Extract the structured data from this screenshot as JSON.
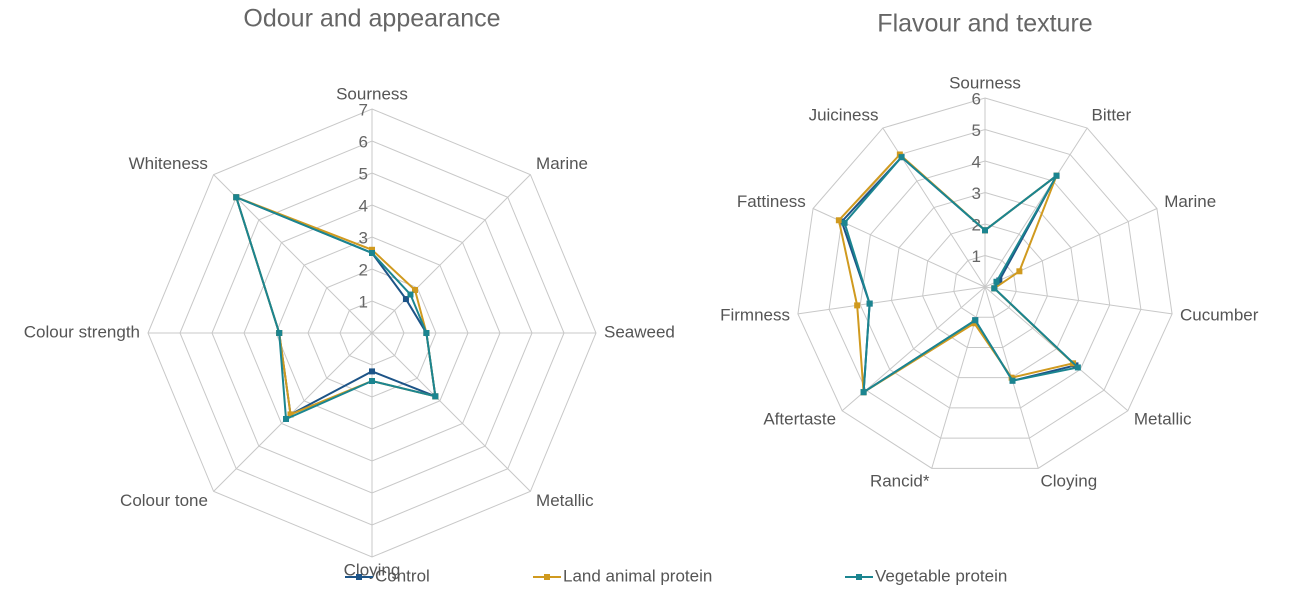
{
  "chart_data": [
    {
      "type": "radar",
      "title": "Odour and appearance",
      "categories": [
        "Sourness",
        "Marine",
        "Seaweed",
        "Metallic",
        "Cloying",
        "Colour tone",
        "Colour strength",
        "Whiteness"
      ],
      "series": [
        {
          "name": "Control",
          "color": "#1d5487",
          "values": [
            2.5,
            1.5,
            1.7,
            2.8,
            1.2,
            3.6,
            2.9,
            6.0
          ]
        },
        {
          "name": "Land animal protein",
          "color": "#d09a1f",
          "values": [
            2.6,
            1.9,
            1.7,
            2.8,
            1.5,
            3.6,
            2.9,
            6.0
          ]
        },
        {
          "name": "Vegetable protein",
          "color": "#1b8590",
          "values": [
            2.5,
            1.7,
            1.7,
            2.8,
            1.5,
            3.8,
            2.9,
            6.0
          ]
        }
      ],
      "ylim": [
        0,
        7
      ],
      "yticks": [
        1,
        2,
        3,
        4,
        5,
        6,
        7
      ]
    },
    {
      "type": "radar",
      "title": "Flavour and texture",
      "categories": [
        "Sourness",
        "Bitter",
        "Marine",
        "Cucumber",
        "Metallic",
        "Cloying",
        "Rancid*",
        "Aftertaste",
        "Firmness",
        "Fattiness",
        "Juiciness"
      ],
      "series": [
        {
          "color": "#1d5487",
          "values": [
            1.8,
            4.2,
            0.5,
            0.3,
            3.8,
            3.1,
            1.1,
            5.1,
            3.7,
            5.0,
            4.9
          ]
        },
        {
          "color": "#d09a1f",
          "values": [
            1.8,
            4.2,
            1.2,
            0.3,
            3.7,
            3.0,
            1.2,
            5.1,
            4.1,
            5.1,
            5.0
          ]
        },
        {
          "color": "#1b8590",
          "values": [
            1.8,
            4.2,
            0.4,
            0.3,
            3.9,
            3.1,
            1.1,
            5.1,
            3.7,
            4.9,
            4.9
          ]
        }
      ],
      "ylim": [
        0,
        6
      ],
      "yticks": [
        1,
        2,
        3,
        4,
        5,
        6
      ]
    }
  ]
}
